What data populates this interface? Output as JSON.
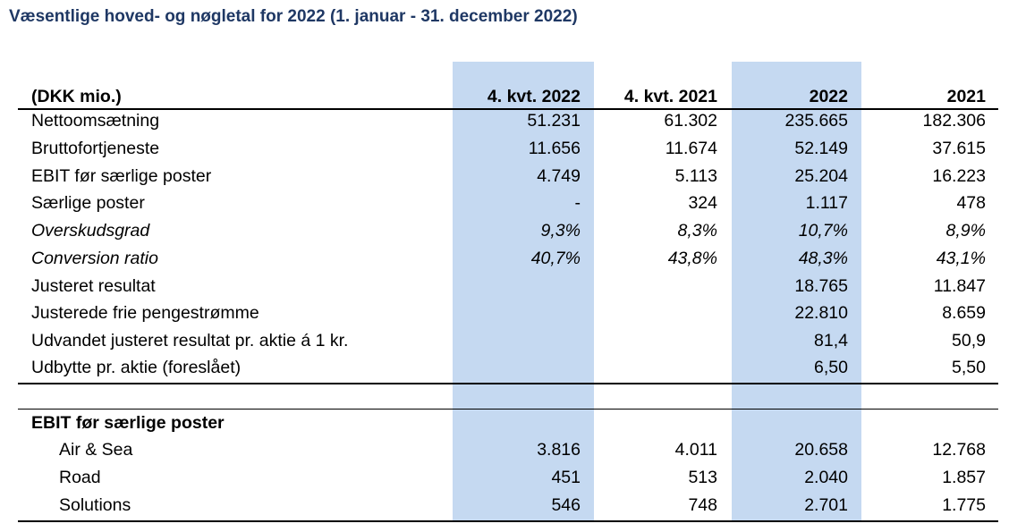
{
  "title": "Væsentlige hoved- og nøgletal for 2022 (1. januar - 31. december 2022)",
  "header": {
    "label": "(DKK mio.)",
    "columns": [
      "4. kvt. 2022",
      "4. kvt. 2021",
      "2022",
      "2021"
    ]
  },
  "rows": [
    {
      "label": "Nettoomsætning",
      "values": [
        "51.231",
        "61.302",
        "235.665",
        "182.306"
      ]
    },
    {
      "label": "Bruttofortjeneste",
      "values": [
        "11.656",
        "11.674",
        "52.149",
        "37.615"
      ]
    },
    {
      "label": "EBIT før særlige poster",
      "values": [
        "4.749",
        "5.113",
        "25.204",
        "16.223"
      ]
    },
    {
      "label": "Særlige poster",
      "values": [
        "-",
        "324",
        "1.117",
        "478"
      ]
    },
    {
      "label": "Overskudsgrad",
      "values": [
        "9,3%",
        "8,3%",
        "10,7%",
        "8,9%"
      ]
    },
    {
      "label": "Conversion ratio",
      "values": [
        "40,7%",
        "43,8%",
        "48,3%",
        "43,1%"
      ]
    },
    {
      "label": "Justeret resultat",
      "values": [
        "",
        "",
        "18.765",
        "11.847"
      ]
    },
    {
      "label": "Justerede frie pengestrømme",
      "values": [
        "",
        "",
        "22.810",
        "8.659"
      ]
    },
    {
      "label": "Udvandet justeret resultat pr. aktie á 1 kr.",
      "values": [
        "",
        "",
        "81,4",
        "50,9"
      ]
    },
    {
      "label": "Udbytte pr. aktie (foreslået)",
      "values": [
        "",
        "",
        "6,50",
        "5,50"
      ]
    }
  ],
  "section": {
    "title": "EBIT før særlige poster",
    "rows": [
      {
        "label": "Air & Sea",
        "values": [
          "3.816",
          "4.011",
          "20.658",
          "12.768"
        ]
      },
      {
        "label": "Road",
        "values": [
          "451",
          "513",
          "2.040",
          "1.857"
        ]
      },
      {
        "label": "Solutions",
        "values": [
          "546",
          "748",
          "2.701",
          "1.775"
        ]
      }
    ]
  },
  "colors": {
    "title": "#1f3864",
    "highlight": "#c5d9f1"
  }
}
